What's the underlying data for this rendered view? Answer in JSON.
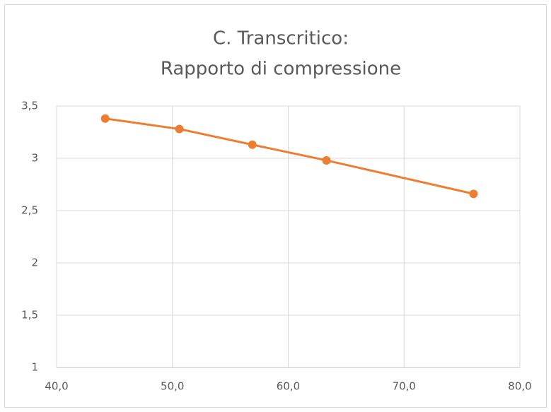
{
  "chart_data": {
    "type": "line",
    "title": [
      "C. Transcritico:",
      "Rapporto di compressione"
    ],
    "x": [
      44.2,
      50.6,
      56.9,
      63.3,
      76.0
    ],
    "values": [
      3.38,
      3.28,
      3.13,
      2.98,
      2.66
    ],
    "color": "#ed7d31",
    "xlim": [
      40,
      80
    ],
    "xticks": [
      {
        "value": 40,
        "label": "40,0"
      },
      {
        "value": 50,
        "label": "50,0"
      },
      {
        "value": 60,
        "label": "60,0"
      },
      {
        "value": 70,
        "label": "70,0"
      },
      {
        "value": 80,
        "label": "80,0"
      }
    ],
    "ylim": [
      1,
      3.5
    ],
    "yticks": [
      1,
      {
        "value": 1.5,
        "label": "1,5"
      },
      2,
      {
        "value": 2.5,
        "label": "2,5"
      },
      3,
      {
        "value": 3.5,
        "label": "3,5"
      }
    ],
    "grid": true
  }
}
